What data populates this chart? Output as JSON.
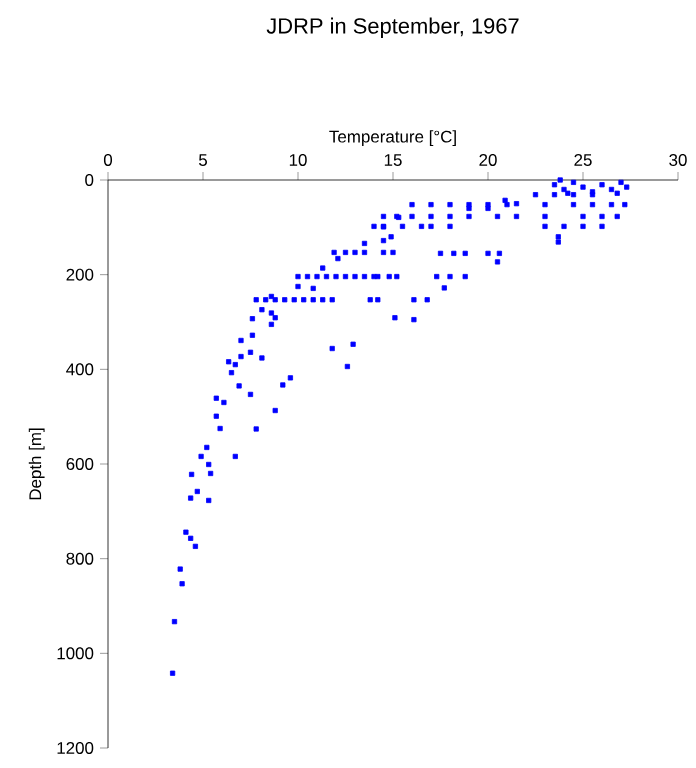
{
  "chart_data": {
    "type": "scatter",
    "title": "JDRP in September, 1967",
    "xlabel": "Temperature [°C]",
    "ylabel": "Depth [m]",
    "xlim": [
      0,
      30
    ],
    "ylim": [
      1200,
      0
    ],
    "xticks": [
      0,
      5,
      10,
      15,
      20,
      25,
      30
    ],
    "yticks": [
      0,
      200,
      400,
      600,
      800,
      1000,
      1200
    ],
    "marker": "square",
    "grid": false,
    "series": [
      {
        "color": "#0000ff",
        "x": [
          3.4,
          3.5,
          3.9,
          3.8,
          4.6,
          4.35,
          4.1,
          5.3,
          4.7,
          4.35,
          4.4,
          5.4,
          4.9,
          5.3,
          5.2,
          6.7,
          5.9,
          5.7,
          5.7,
          6.1,
          7.8,
          8.8,
          7.5,
          6.9,
          9.2,
          9.6,
          6.5,
          6.35,
          6.7,
          7.0,
          7.5,
          8.1,
          7.0,
          7.6,
          7.6,
          8.1,
          8.6,
          8.8,
          8.6,
          11.8,
          12.9,
          12.6,
          15.1,
          7.8,
          8.3,
          8.8,
          9.3,
          9.8,
          10.3,
          10.8,
          11.3,
          11.8,
          13.8,
          14.2,
          8.6,
          10.0,
          10.5,
          11.0,
          11.5,
          12.0,
          12.5,
          13.0,
          13.5,
          14.0,
          15.2,
          10.0,
          10.8,
          11.3,
          11.9,
          12.1,
          12.5,
          13.0,
          13.5,
          14.5,
          15.0,
          13.5,
          14.5,
          14.9,
          14.5,
          15.3,
          23.5,
          24.0,
          24.5,
          25.0,
          25.5,
          26.0,
          26.5,
          27.0,
          27.3,
          24.2,
          26.8,
          23.8,
          22.5,
          23.5,
          24.5,
          25.5,
          16.0,
          17.0,
          18.0,
          19.0,
          20.0,
          21.0,
          23.0,
          24.5,
          25.5,
          26.5,
          27.2,
          14.5,
          15.2,
          16.0,
          17.0,
          18.0,
          19.0,
          20.5,
          21.5,
          23.0,
          25.0,
          26.0,
          26.8,
          14.0,
          14.5,
          15.5,
          16.5,
          17.0,
          18.0,
          23.0,
          24.0,
          25.0,
          26.0,
          23.7,
          23.7,
          17.5,
          18.2,
          18.8,
          20.0,
          20.6,
          20.5,
          14.2,
          14.8,
          17.3,
          18.0,
          18.8,
          17.7,
          16.1,
          16.8,
          16.1,
          20.9,
          21.5,
          19.0,
          20.0
        ],
        "values": [
          1042,
          933,
          853,
          822,
          774,
          757,
          744,
          677,
          658,
          672,
          622,
          620,
          584,
          601,
          565,
          584,
          525,
          499,
          461,
          470,
          526,
          487,
          453,
          435,
          433,
          418,
          407,
          384,
          390,
          373,
          364,
          376,
          339,
          328,
          293,
          274,
          305,
          291,
          281,
          356,
          347,
          394,
          291,
          253,
          253,
          253,
          253,
          253,
          253,
          253,
          253,
          253,
          253,
          253,
          246,
          204,
          204,
          204,
          204,
          204,
          204,
          204,
          204,
          204,
          204,
          225,
          229,
          186,
          153,
          166,
          153,
          153,
          153,
          153,
          153,
          134,
          128,
          120,
          99,
          79,
          10,
          20,
          5,
          15,
          25,
          10,
          20,
          5,
          15,
          28,
          28,
          0,
          31,
          31,
          31,
          31,
          52,
          52,
          52,
          52,
          52,
          52,
          52,
          52,
          52,
          52,
          52,
          77,
          77,
          77,
          77,
          77,
          77,
          77,
          77,
          77,
          77,
          77,
          77,
          98,
          98,
          98,
          98,
          98,
          98,
          98,
          98,
          98,
          98,
          120,
          131,
          155,
          155,
          155,
          155,
          155,
          173,
          204,
          204,
          204,
          204,
          204,
          228,
          253,
          253,
          295,
          43,
          50,
          60,
          60
        ]
      }
    ]
  }
}
